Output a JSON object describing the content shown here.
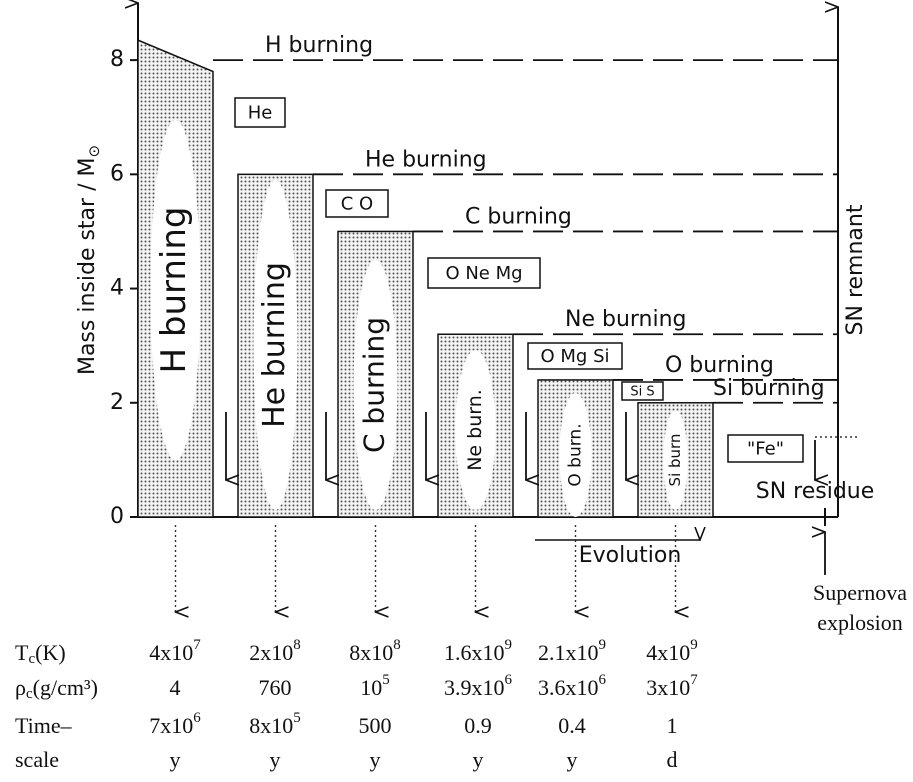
{
  "axis": {
    "label": "Mass inside star / M",
    "label_sub": "⊙",
    "ylim": [
      0,
      9
    ],
    "yticks": [
      0,
      2,
      4,
      6,
      8
    ]
  },
  "stages": [
    {
      "label": "H burning",
      "top": [
        8.35,
        7.8
      ]
    },
    {
      "label": "He burning",
      "top": 6
    },
    {
      "label": "C burning",
      "top": 5
    },
    {
      "label": "Ne burn.",
      "top": 3.2
    },
    {
      "label": "O burn.",
      "top": 2.4
    },
    {
      "label": "Si burn",
      "top": 2
    }
  ],
  "shells": [
    {
      "label": "H burning",
      "level": 8
    },
    {
      "label": "He burning",
      "level": 6
    },
    {
      "label": "C burning",
      "level": 5
    },
    {
      "label": "Ne burning",
      "level": 3.2
    },
    {
      "label": "O burning",
      "level": 2.4
    },
    {
      "label": "Si burning",
      "level": 2
    }
  ],
  "products": [
    "He",
    "C O",
    "O Ne Mg",
    "O Mg Si",
    "Si S",
    "\"Fe\""
  ],
  "sn_remnant": "SN remnant",
  "sn_residue": "SN residue",
  "evolution": "Evolution",
  "supernova": [
    "Supernova",
    "explosion"
  ],
  "table": {
    "row_labels": [
      [
        "T",
        "c",
        "(K)"
      ],
      [
        "ρ",
        "c",
        "(g/cm³)"
      ],
      [
        "Time–",
        "scale"
      ]
    ],
    "rows": [
      [
        {
          "base": "4x10",
          "exp": "7"
        },
        {
          "base": "2x10",
          "exp": "8"
        },
        {
          "base": "8x10",
          "exp": "8"
        },
        {
          "base": "1.6x10",
          "exp": "9"
        },
        {
          "base": "2.1x10",
          "exp": "9"
        },
        {
          "base": "4x10",
          "exp": "9"
        }
      ],
      [
        {
          "base": "4"
        },
        {
          "base": "760"
        },
        {
          "base": "10",
          "exp": "5"
        },
        {
          "base": "3.9x10",
          "exp": "6"
        },
        {
          "base": "3.6x10",
          "exp": "6"
        },
        {
          "base": "3x10",
          "exp": "7"
        }
      ],
      [
        {
          "base": "7x10",
          "exp": "6",
          "unit": "y"
        },
        {
          "base": "8x10",
          "exp": "5",
          "unit": "y"
        },
        {
          "base": "500",
          "unit": "y"
        },
        {
          "base": "0.9",
          "unit": "y"
        },
        {
          "base": "0.4",
          "unit": "y"
        },
        {
          "base": "1",
          "unit": "d"
        }
      ]
    ]
  }
}
